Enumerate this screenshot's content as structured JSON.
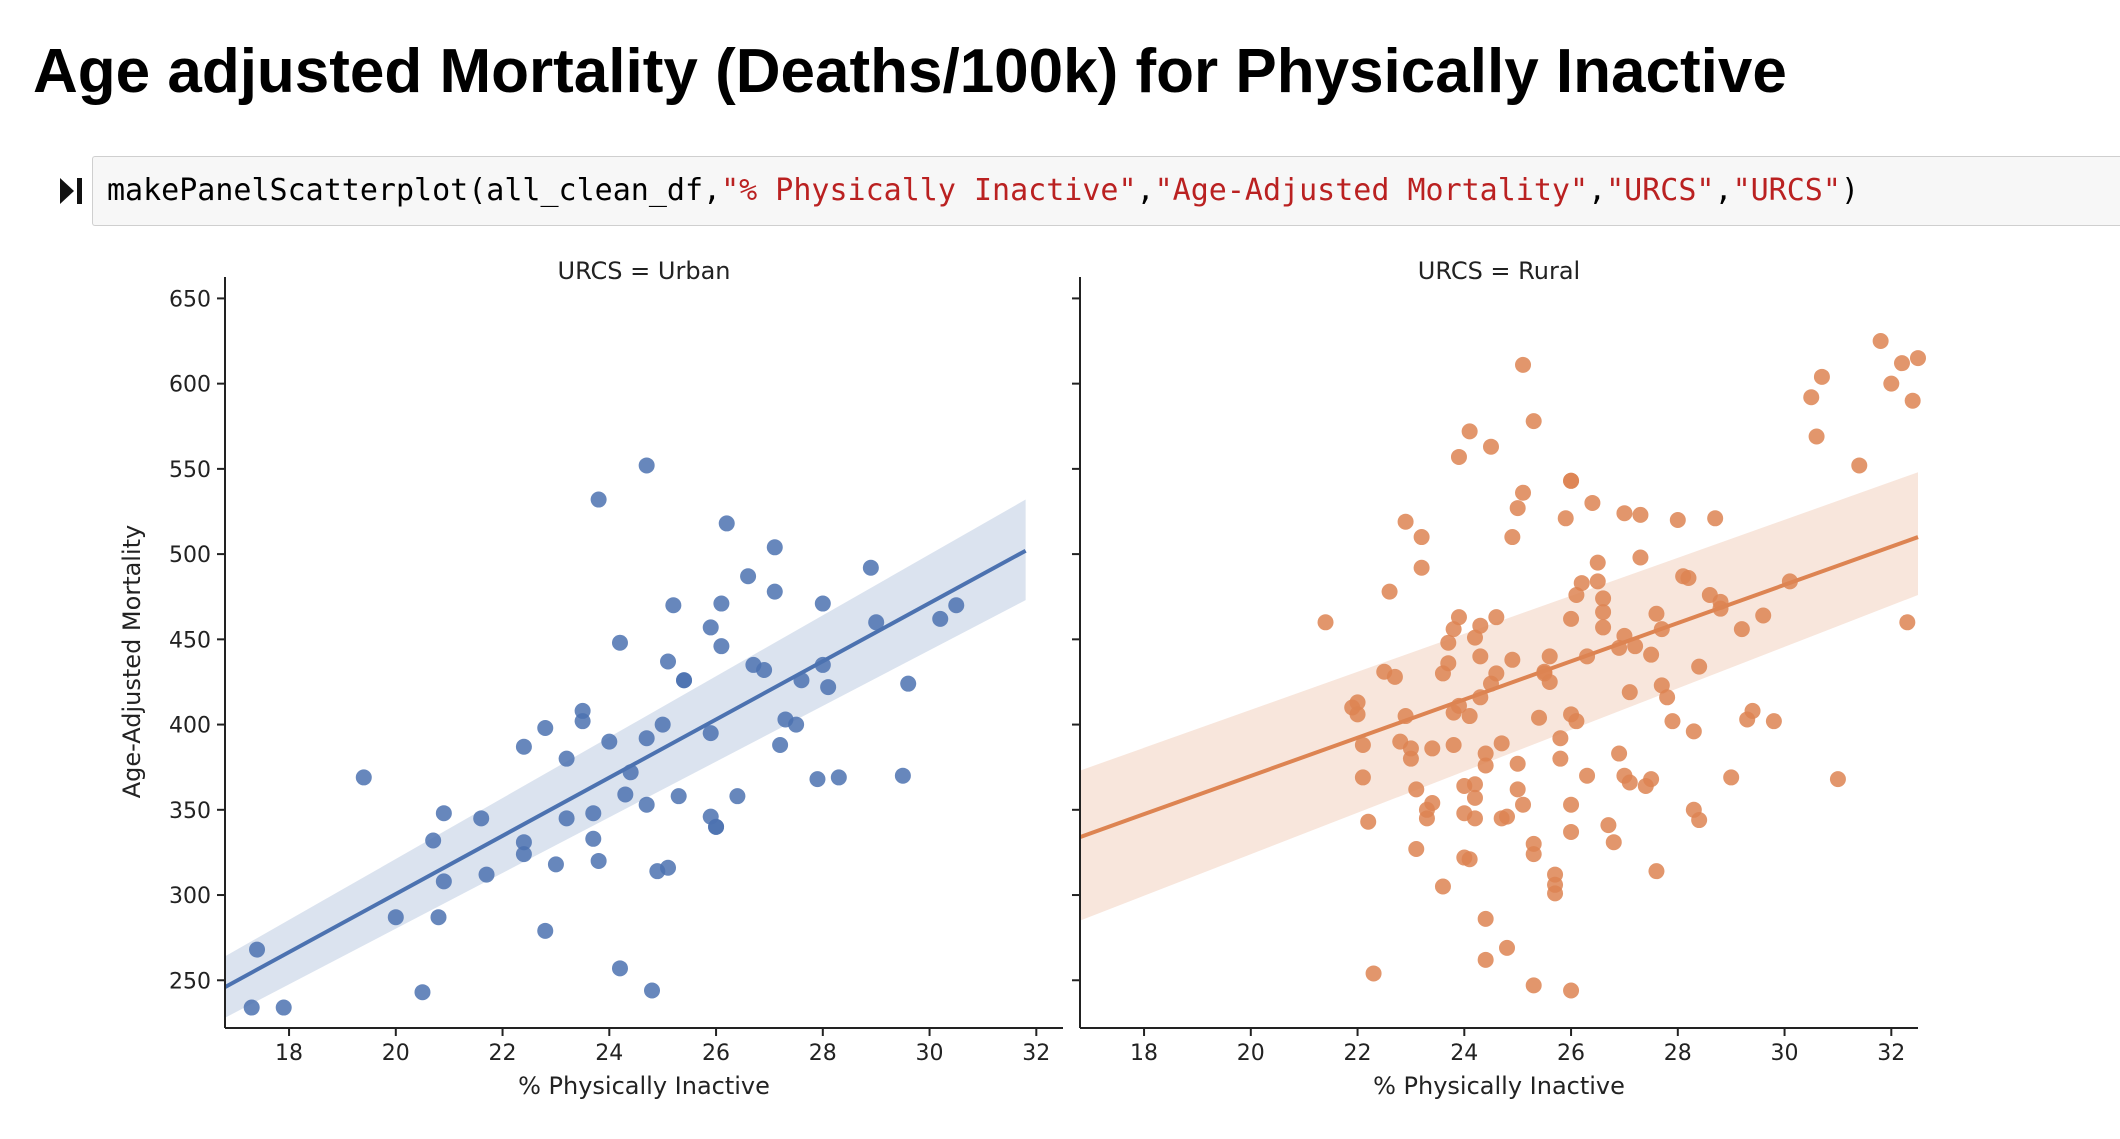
{
  "notebook": {
    "heading": "Age adjusted Mortality (Deaths/100k) for Physically Inactive",
    "code": {
      "func": "makePanelScatterplot(all_clean_df,",
      "arg1": "\"% Physically Inactive\"",
      "arg2": "\"Age-Adjusted Mortality\"",
      "arg3": "\"URCS\"",
      "arg4": "\"URCS\"",
      "close": ")"
    }
  },
  "chart_data": [
    {
      "type": "scatter",
      "title": "URCS = Urban",
      "xlabel": "% Physically Inactive",
      "ylabel": "Age-Adjusted Mortality",
      "xlim": [
        16.8,
        32.5
      ],
      "ylim": [
        222,
        652
      ],
      "xticks": [
        18,
        20,
        22,
        24,
        26,
        28,
        30,
        32
      ],
      "yticks": [
        250,
        300,
        350,
        400,
        450,
        500,
        550,
        600,
        650
      ],
      "color": "#4c72b0",
      "fit": {
        "x": [
          16.8,
          31.8
        ],
        "y": [
          246,
          502
        ],
        "ci_low": [
          228,
          473
        ],
        "ci_high": [
          264,
          532
        ]
      },
      "points": [
        [
          17.3,
          234
        ],
        [
          17.4,
          268
        ],
        [
          17.9,
          234
        ],
        [
          19.4,
          369
        ],
        [
          20.0,
          287
        ],
        [
          20.5,
          243
        ],
        [
          20.7,
          332
        ],
        [
          20.8,
          287
        ],
        [
          20.9,
          348
        ],
        [
          20.9,
          308
        ],
        [
          21.6,
          345
        ],
        [
          21.7,
          312
        ],
        [
          22.4,
          387
        ],
        [
          22.4,
          331
        ],
        [
          22.4,
          324
        ],
        [
          22.8,
          398
        ],
        [
          22.8,
          279
        ],
        [
          23.0,
          318
        ],
        [
          23.2,
          380
        ],
        [
          23.2,
          345
        ],
        [
          23.5,
          408
        ],
        [
          23.5,
          402
        ],
        [
          23.7,
          348
        ],
        [
          23.7,
          333
        ],
        [
          23.8,
          532
        ],
        [
          23.8,
          320
        ],
        [
          24.0,
          390
        ],
        [
          24.2,
          257
        ],
        [
          24.2,
          448
        ],
        [
          24.3,
          359
        ],
        [
          24.4,
          372
        ],
        [
          24.7,
          353
        ],
        [
          24.7,
          392
        ],
        [
          24.7,
          552
        ],
        [
          24.8,
          244
        ],
        [
          24.9,
          314
        ],
        [
          25.0,
          400
        ],
        [
          25.1,
          316
        ],
        [
          25.1,
          437
        ],
        [
          25.2,
          470
        ],
        [
          25.3,
          358
        ],
        [
          25.4,
          426
        ],
        [
          25.4,
          426
        ],
        [
          25.9,
          346
        ],
        [
          25.9,
          457
        ],
        [
          25.9,
          395
        ],
        [
          26.0,
          340
        ],
        [
          26.0,
          340
        ],
        [
          26.1,
          471
        ],
        [
          26.1,
          446
        ],
        [
          26.2,
          518
        ],
        [
          26.4,
          358
        ],
        [
          26.6,
          487
        ],
        [
          26.7,
          435
        ],
        [
          26.9,
          432
        ],
        [
          27.1,
          504
        ],
        [
          27.1,
          478
        ],
        [
          27.2,
          388
        ],
        [
          27.3,
          403
        ],
        [
          27.5,
          400
        ],
        [
          27.6,
          426
        ],
        [
          27.9,
          368
        ],
        [
          28.0,
          471
        ],
        [
          28.0,
          435
        ],
        [
          28.1,
          422
        ],
        [
          28.3,
          369
        ],
        [
          28.9,
          492
        ],
        [
          29.0,
          460
        ],
        [
          29.5,
          370
        ],
        [
          29.6,
          424
        ],
        [
          30.2,
          462
        ],
        [
          30.5,
          470
        ]
      ]
    },
    {
      "type": "scatter",
      "title": "URCS = Rural",
      "xlabel": "% Physically Inactive",
      "ylabel": "",
      "xlim": [
        16.8,
        32.5
      ],
      "ylim": [
        222,
        652
      ],
      "xticks": [
        18,
        20,
        22,
        24,
        26,
        28,
        30,
        32
      ],
      "yticks": [
        250,
        300,
        350,
        400,
        450,
        500,
        550,
        600,
        650
      ],
      "color": "#dd8452",
      "fit": {
        "x": [
          16.8,
          32.5
        ],
        "y": [
          334,
          510
        ],
        "ci_low": [
          285,
          476
        ],
        "ci_high": [
          373,
          548
        ]
      },
      "points": [
        [
          21.4,
          460
        ],
        [
          21.9,
          410
        ],
        [
          22.0,
          413
        ],
        [
          22.0,
          406
        ],
        [
          22.1,
          388
        ],
        [
          22.1,
          369
        ],
        [
          22.2,
          343
        ],
        [
          22.3,
          254
        ],
        [
          22.5,
          431
        ],
        [
          22.6,
          478
        ],
        [
          22.7,
          428
        ],
        [
          22.8,
          390
        ],
        [
          22.9,
          519
        ],
        [
          22.9,
          405
        ],
        [
          23.0,
          380
        ],
        [
          23.0,
          386
        ],
        [
          23.1,
          362
        ],
        [
          23.1,
          327
        ],
        [
          23.2,
          510
        ],
        [
          23.2,
          492
        ],
        [
          23.3,
          345
        ],
        [
          23.3,
          350
        ],
        [
          23.4,
          354
        ],
        [
          23.4,
          386
        ],
        [
          23.6,
          305
        ],
        [
          23.6,
          430
        ],
        [
          23.7,
          448
        ],
        [
          23.7,
          436
        ],
        [
          23.8,
          456
        ],
        [
          23.8,
          407
        ],
        [
          23.8,
          388
        ],
        [
          23.9,
          557
        ],
        [
          23.9,
          463
        ],
        [
          23.9,
          411
        ],
        [
          24.0,
          322
        ],
        [
          24.0,
          364
        ],
        [
          24.0,
          348
        ],
        [
          24.1,
          321
        ],
        [
          24.1,
          572
        ],
        [
          24.1,
          405
        ],
        [
          24.2,
          451
        ],
        [
          24.2,
          365
        ],
        [
          24.2,
          357
        ],
        [
          24.2,
          345
        ],
        [
          24.3,
          416
        ],
        [
          24.3,
          440
        ],
        [
          24.3,
          458
        ],
        [
          24.4,
          383
        ],
        [
          24.4,
          376
        ],
        [
          24.4,
          262
        ],
        [
          24.4,
          286
        ],
        [
          24.5,
          424
        ],
        [
          24.5,
          563
        ],
        [
          24.6,
          463
        ],
        [
          24.6,
          430
        ],
        [
          24.7,
          389
        ],
        [
          24.7,
          345
        ],
        [
          24.8,
          269
        ],
        [
          24.8,
          346
        ],
        [
          24.9,
          510
        ],
        [
          24.9,
          438
        ],
        [
          25.0,
          377
        ],
        [
          25.0,
          362
        ],
        [
          25.0,
          527
        ],
        [
          25.1,
          536
        ],
        [
          25.1,
          611
        ],
        [
          25.1,
          353
        ],
        [
          25.3,
          324
        ],
        [
          25.3,
          330
        ],
        [
          25.3,
          247
        ],
        [
          25.3,
          578
        ],
        [
          25.4,
          404
        ],
        [
          25.5,
          430
        ],
        [
          25.5,
          431
        ],
        [
          25.6,
          425
        ],
        [
          25.6,
          440
        ],
        [
          25.7,
          312
        ],
        [
          25.7,
          301
        ],
        [
          25.7,
          306
        ],
        [
          25.8,
          392
        ],
        [
          25.8,
          380
        ],
        [
          25.9,
          521
        ],
        [
          26.0,
          543
        ],
        [
          26.0,
          543
        ],
        [
          26.0,
          337
        ],
        [
          26.0,
          353
        ],
        [
          26.0,
          462
        ],
        [
          26.0,
          406
        ],
        [
          26.0,
          244
        ],
        [
          26.1,
          476
        ],
        [
          26.1,
          402
        ],
        [
          26.2,
          483
        ],
        [
          26.3,
          440
        ],
        [
          26.3,
          370
        ],
        [
          26.4,
          530
        ],
        [
          26.5,
          495
        ],
        [
          26.5,
          484
        ],
        [
          26.6,
          466
        ],
        [
          26.6,
          474
        ],
        [
          26.6,
          457
        ],
        [
          26.7,
          341
        ],
        [
          26.8,
          331
        ],
        [
          26.9,
          445
        ],
        [
          26.9,
          383
        ],
        [
          27.0,
          370
        ],
        [
          27.0,
          452
        ],
        [
          27.0,
          524
        ],
        [
          27.1,
          366
        ],
        [
          27.1,
          419
        ],
        [
          27.2,
          446
        ],
        [
          27.3,
          498
        ],
        [
          27.3,
          523
        ],
        [
          27.4,
          364
        ],
        [
          27.5,
          368
        ],
        [
          27.5,
          441
        ],
        [
          27.6,
          314
        ],
        [
          27.6,
          465
        ],
        [
          27.7,
          456
        ],
        [
          27.7,
          423
        ],
        [
          27.8,
          416
        ],
        [
          27.9,
          402
        ],
        [
          28.0,
          520
        ],
        [
          28.1,
          487
        ],
        [
          28.2,
          486
        ],
        [
          28.3,
          350
        ],
        [
          28.3,
          396
        ],
        [
          28.4,
          434
        ],
        [
          28.4,
          344
        ],
        [
          28.6,
          476
        ],
        [
          28.7,
          521
        ],
        [
          28.8,
          472
        ],
        [
          28.8,
          468
        ],
        [
          29.0,
          369
        ],
        [
          29.2,
          456
        ],
        [
          29.3,
          403
        ],
        [
          29.4,
          408
        ],
        [
          29.6,
          464
        ],
        [
          29.8,
          402
        ],
        [
          30.1,
          484
        ],
        [
          30.5,
          592
        ],
        [
          30.6,
          569
        ],
        [
          30.7,
          604
        ],
        [
          31.0,
          368
        ],
        [
          31.4,
          552
        ],
        [
          31.8,
          625
        ],
        [
          32.0,
          600
        ],
        [
          32.2,
          612
        ],
        [
          32.3,
          460
        ],
        [
          32.4,
          590
        ],
        [
          32.5,
          615
        ]
      ]
    }
  ]
}
